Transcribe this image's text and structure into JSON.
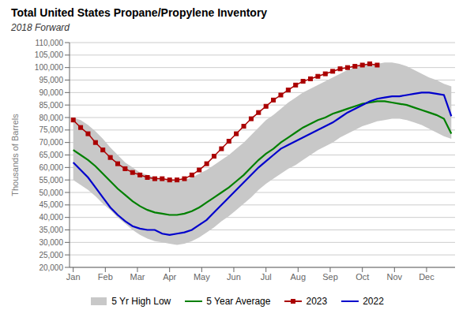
{
  "chart_data": {
    "type": "line",
    "title": "Total United States Propane/Propylene Inventory",
    "subtitle": "2018 Forward",
    "ylabel": "Thousands of Barrels",
    "x": [
      0,
      1,
      2,
      3,
      4,
      5,
      6,
      7,
      8,
      9,
      10,
      11,
      12,
      13,
      14,
      15,
      16,
      17,
      18,
      19,
      20,
      21,
      22,
      23,
      24,
      25,
      26,
      27,
      28,
      29,
      30,
      31,
      32,
      33,
      34,
      35,
      36,
      37,
      38,
      39,
      40,
      41,
      42,
      43,
      44,
      45,
      46,
      47,
      48,
      49,
      50,
      51
    ],
    "xlim": [
      -0.5,
      51.5
    ],
    "xticks": [
      {
        "value": 0,
        "label": "Jan"
      },
      {
        "value": 4.33,
        "label": "Feb"
      },
      {
        "value": 8.66,
        "label": "Mar"
      },
      {
        "value": 13.0,
        "label": "Apr"
      },
      {
        "value": 17.33,
        "label": "May"
      },
      {
        "value": 21.66,
        "label": "Jun"
      },
      {
        "value": 26.0,
        "label": "Jul"
      },
      {
        "value": 30.33,
        "label": "Aug"
      },
      {
        "value": 34.66,
        "label": "Sep"
      },
      {
        "value": 39.0,
        "label": "Oct"
      },
      {
        "value": 43.33,
        "label": "Nov"
      },
      {
        "value": 47.66,
        "label": "Dec"
      }
    ],
    "ylim": [
      20000,
      110000
    ],
    "yticks": [
      {
        "value": 20000,
        "label": "20,000"
      },
      {
        "value": 25000,
        "label": "25,000"
      },
      {
        "value": 30000,
        "label": "30,000"
      },
      {
        "value": 35000,
        "label": "35,000"
      },
      {
        "value": 40000,
        "label": "40,000"
      },
      {
        "value": 45000,
        "label": "45,000"
      },
      {
        "value": 50000,
        "label": "50,000"
      },
      {
        "value": 55000,
        "label": "55,000"
      },
      {
        "value": 60000,
        "label": "60,000"
      },
      {
        "value": 65000,
        "label": "65,000"
      },
      {
        "value": 70000,
        "label": "70,000"
      },
      {
        "value": 75000,
        "label": "75,000"
      },
      {
        "value": 80000,
        "label": "80,000"
      },
      {
        "value": 85000,
        "label": "85,000"
      },
      {
        "value": 90000,
        "label": "90,000"
      },
      {
        "value": 95000,
        "label": "95,000"
      },
      {
        "value": 100000,
        "label": "100,000"
      },
      {
        "value": 105000,
        "label": "105,000"
      },
      {
        "value": 110000,
        "label": "110,000"
      }
    ],
    "grid": true,
    "legend": "bottom",
    "series": [
      {
        "name": "5 Yr High Low",
        "type": "band",
        "color": "#c8c8c8",
        "low": [
          55000,
          53000,
          51000,
          48500,
          45500,
          43000,
          40000,
          37500,
          35000,
          33000,
          31500,
          30500,
          30000,
          29500,
          29000,
          29500,
          30500,
          32000,
          34000,
          36000,
          38500,
          40500,
          43000,
          45500,
          48000,
          51000,
          53500,
          55500,
          57500,
          59500,
          61000,
          63000,
          65000,
          67000,
          68500,
          70000,
          72000,
          73500,
          75000,
          76500,
          77500,
          78500,
          79000,
          79500,
          79500,
          79000,
          78000,
          77000,
          75500,
          74000,
          72500,
          71500
        ],
        "high": [
          80000,
          79000,
          77000,
          74500,
          71500,
          68000,
          65000,
          62000,
          60000,
          58000,
          57000,
          56000,
          55500,
          55000,
          54500,
          55000,
          56000,
          57500,
          59000,
          61000,
          63000,
          65000,
          67500,
          70000,
          73000,
          76000,
          79000,
          81000,
          83500,
          86000,
          88000,
          90000,
          91500,
          93000,
          94500,
          96000,
          97500,
          99000,
          100000,
          101000,
          101500,
          101500,
          102000,
          102000,
          101500,
          100500,
          99000,
          97500,
          96000,
          95000,
          93500,
          92500
        ]
      },
      {
        "name": "5 Year Average",
        "type": "line",
        "color": "#008000",
        "values": [
          67000,
          65000,
          63000,
          60500,
          57500,
          54500,
          51500,
          49000,
          46500,
          44500,
          43000,
          42000,
          41500,
          41000,
          41000,
          41500,
          42500,
          44000,
          46000,
          48000,
          50000,
          52000,
          54500,
          57000,
          60000,
          63000,
          65500,
          67500,
          70000,
          72000,
          74000,
          76000,
          77500,
          79000,
          80000,
          81500,
          82500,
          83500,
          84500,
          85500,
          86000,
          86500,
          86500,
          86000,
          85500,
          85000,
          84000,
          83000,
          82000,
          81000,
          79500,
          73500
        ]
      },
      {
        "name": "2023",
        "type": "line",
        "color": "#aa0000",
        "marker": "square",
        "values": [
          79000,
          76000,
          73500,
          70000,
          67000,
          64000,
          61500,
          59500,
          58000,
          57000,
          56000,
          55500,
          55500,
          55000,
          55000,
          55500,
          57000,
          59000,
          61500,
          64500,
          67500,
          70500,
          73500,
          76500,
          79500,
          82000,
          84500,
          87000,
          89000,
          91000,
          93000,
          94500,
          95500,
          96500,
          97500,
          98500,
          99500,
          100000,
          100500,
          101000,
          101500,
          101000,
          null,
          null,
          null,
          null,
          null,
          null,
          null,
          null,
          null,
          null
        ]
      },
      {
        "name": "2022",
        "type": "line",
        "color": "#0000cc",
        "values": [
          62000,
          59000,
          56000,
          52000,
          48000,
          44000,
          41000,
          38500,
          36500,
          35500,
          35000,
          35000,
          33500,
          33000,
          33500,
          34000,
          35000,
          37000,
          39000,
          42000,
          45000,
          48000,
          51000,
          54000,
          57000,
          60000,
          62500,
          65000,
          67500,
          69000,
          70500,
          72000,
          73500,
          75000,
          76500,
          78000,
          80000,
          82000,
          83500,
          85000,
          86500,
          87500,
          88000,
          88500,
          88500,
          89000,
          89500,
          90000,
          90000,
          89500,
          89000,
          80500
        ]
      }
    ]
  }
}
